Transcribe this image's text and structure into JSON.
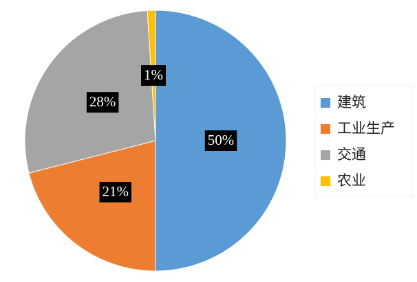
{
  "chart_data": {
    "type": "pie",
    "categories": [
      "建筑",
      "工业生产",
      "交通",
      "农业"
    ],
    "values": [
      50,
      21,
      28,
      1
    ],
    "value_labels": [
      "50%",
      "21%",
      "28%",
      "1%"
    ],
    "colors": [
      "#5b9bd5",
      "#ed7d31",
      "#a5a5a5",
      "#ffc000"
    ],
    "legend": "right"
  }
}
